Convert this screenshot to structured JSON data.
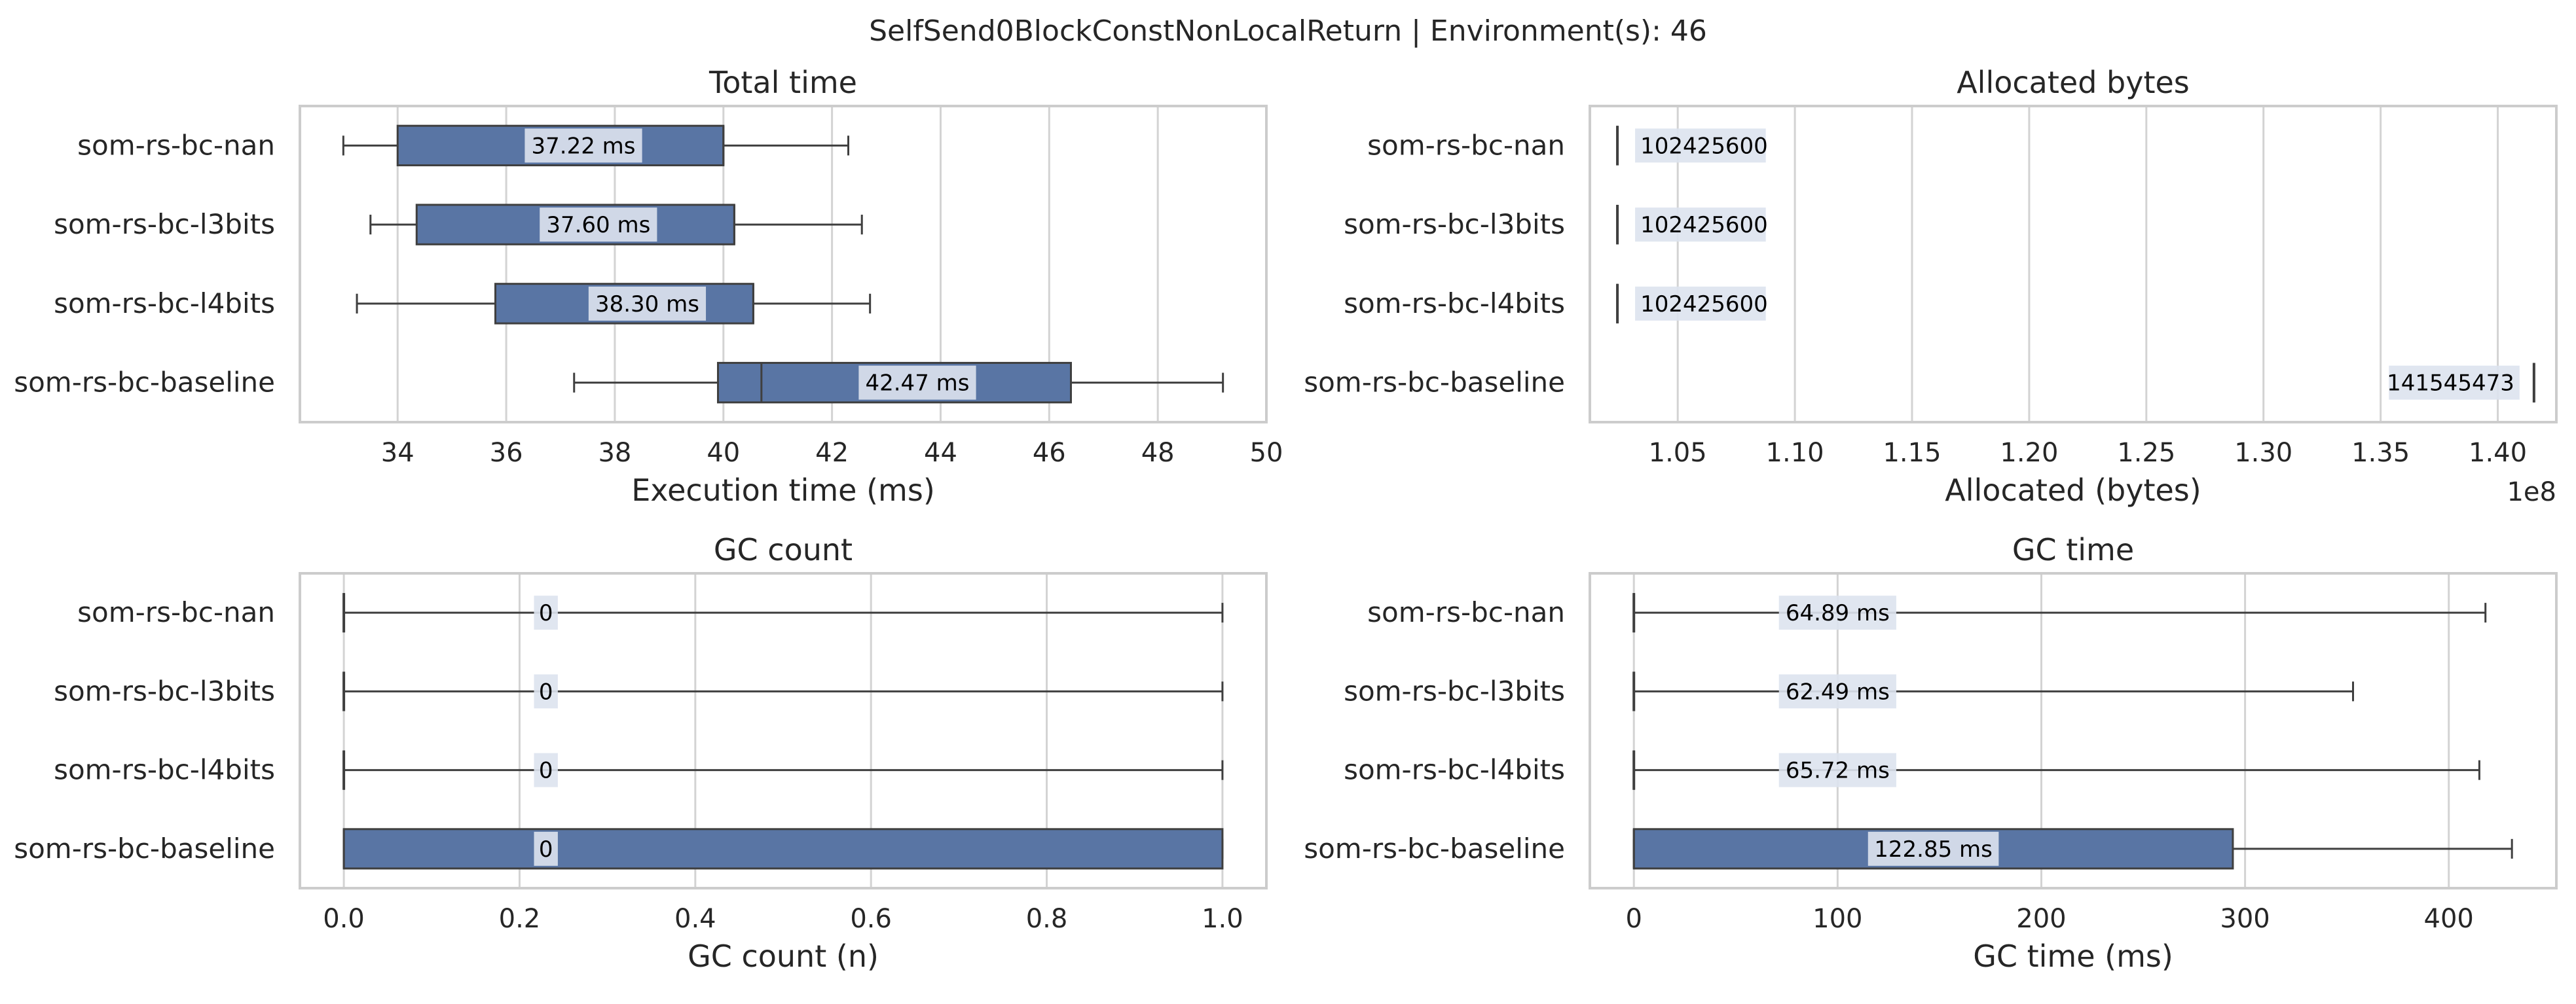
{
  "figure": {
    "title": "SelfSend0BlockConstNonLocalReturn | Environment(s): 46"
  },
  "chart_data": [
    {
      "type": "box",
      "title": "Total time",
      "xlabel": "Execution time (ms)",
      "ylabel": "",
      "xlim": [
        32.2,
        50
      ],
      "ticks": [
        34,
        36,
        38,
        40,
        42,
        44,
        46,
        48,
        50
      ],
      "tick_labels": [
        "34",
        "36",
        "38",
        "40",
        "42",
        "44",
        "46",
        "48",
        "50"
      ],
      "multiplier": "",
      "grid": true,
      "categories": [
        "som-rs-bc-nan",
        "som-rs-bc-l3bits",
        "som-rs-bc-l4bits",
        "som-rs-bc-baseline"
      ],
      "boxes": [
        {
          "whisker_low": 33.0,
          "q1": 34.0,
          "median": 40.0,
          "q3": 40.0,
          "whisker_high": 42.3
        },
        {
          "whisker_low": 33.5,
          "q1": 34.35,
          "median": 40.2,
          "q3": 40.2,
          "whisker_high": 42.55
        },
        {
          "whisker_low": 33.25,
          "q1": 35.8,
          "median": 40.55,
          "q3": 40.55,
          "whisker_high": 42.7
        },
        {
          "whisker_low": 37.25,
          "q1": 39.9,
          "median": 40.7,
          "q3": 46.4,
          "whisker_high": 49.2
        }
      ],
      "data_labels": [
        "37.22 ms",
        "37.60 ms",
        "38.30 ms",
        "42.47 ms"
      ]
    },
    {
      "type": "box",
      "title": "Allocated bytes",
      "xlabel": "Allocated (bytes)",
      "ylabel": "",
      "xlim": [
        1.0125,
        1.425
      ],
      "ticks": [
        1.05,
        1.1,
        1.15,
        1.2,
        1.25,
        1.3,
        1.35,
        1.4
      ],
      "tick_labels": [
        "1.05",
        "1.10",
        "1.15",
        "1.20",
        "1.25",
        "1.30",
        "1.35",
        "1.40"
      ],
      "multiplier": "1e8",
      "grid": true,
      "categories": [
        "som-rs-bc-nan",
        "som-rs-bc-l3bits",
        "som-rs-bc-l4bits",
        "som-rs-bc-baseline"
      ],
      "boxes": [
        {
          "whisker_low": 1.024256,
          "q1": 1.024256,
          "median": 1.024256,
          "q3": 1.024256,
          "whisker_high": 1.024256
        },
        {
          "whisker_low": 1.024256,
          "q1": 1.024256,
          "median": 1.024256,
          "q3": 1.024256,
          "whisker_high": 1.024256
        },
        {
          "whisker_low": 1.024256,
          "q1": 1.024256,
          "median": 1.024256,
          "q3": 1.024256,
          "whisker_high": 1.024256
        },
        {
          "whisker_low": 1.41545473,
          "q1": 1.41545473,
          "median": 1.41545473,
          "q3": 1.41545473,
          "whisker_high": 1.41545473
        }
      ],
      "data_labels": [
        "102425600",
        "102425600",
        "102425600",
        "141545473"
      ]
    },
    {
      "type": "box",
      "title": "GC count",
      "xlabel": "GC count (n)",
      "ylabel": "",
      "xlim": [
        -0.05,
        1.05
      ],
      "ticks": [
        0.0,
        0.2,
        0.4,
        0.6,
        0.8,
        1.0
      ],
      "tick_labels": [
        "0.0",
        "0.2",
        "0.4",
        "0.6",
        "0.8",
        "1.0"
      ],
      "multiplier": "",
      "grid": true,
      "categories": [
        "som-rs-bc-nan",
        "som-rs-bc-l3bits",
        "som-rs-bc-l4bits",
        "som-rs-bc-baseline"
      ],
      "boxes": [
        {
          "whisker_low": 0,
          "q1": 0,
          "median": 0,
          "q3": 0,
          "whisker_high": 1
        },
        {
          "whisker_low": 0,
          "q1": 0,
          "median": 0,
          "q3": 0,
          "whisker_high": 1
        },
        {
          "whisker_low": 0,
          "q1": 0,
          "median": 0,
          "q3": 0,
          "whisker_high": 1
        },
        {
          "whisker_low": 0,
          "q1": 0,
          "median": 0,
          "q3": 1,
          "whisker_high": 1
        }
      ],
      "data_labels": [
        "0",
        "0",
        "0",
        "0"
      ]
    },
    {
      "type": "box",
      "title": "GC time",
      "xlabel": "GC time (ms)",
      "ylabel": "",
      "xlim": [
        -21.6,
        452.8
      ],
      "ticks": [
        0,
        100,
        200,
        300,
        400
      ],
      "tick_labels": [
        "0",
        "100",
        "200",
        "300",
        "400"
      ],
      "multiplier": "",
      "grid": true,
      "categories": [
        "som-rs-bc-nan",
        "som-rs-bc-l3bits",
        "som-rs-bc-l4bits",
        "som-rs-bc-baseline"
      ],
      "boxes": [
        {
          "whisker_low": 0,
          "q1": 0,
          "median": 0,
          "q3": 0,
          "whisker_high": 418
        },
        {
          "whisker_low": 0,
          "q1": 0,
          "median": 0,
          "q3": 0,
          "whisker_high": 353
        },
        {
          "whisker_low": 0,
          "q1": 0,
          "median": 0,
          "q3": 0,
          "whisker_high": 415
        },
        {
          "whisker_low": 0,
          "q1": 0,
          "median": 0,
          "q3": 294,
          "whisker_high": 431
        }
      ],
      "data_labels": [
        "64.89 ms",
        "62.49 ms",
        "65.72 ms",
        "122.85 ms"
      ]
    }
  ],
  "colors": {
    "box_fill": "#5975a4",
    "box_edge": "#3f3f3f",
    "grid": "#d3d3d3",
    "frame": "#cccccc",
    "label_bg": "#dde3ee",
    "text": "#262626"
  }
}
